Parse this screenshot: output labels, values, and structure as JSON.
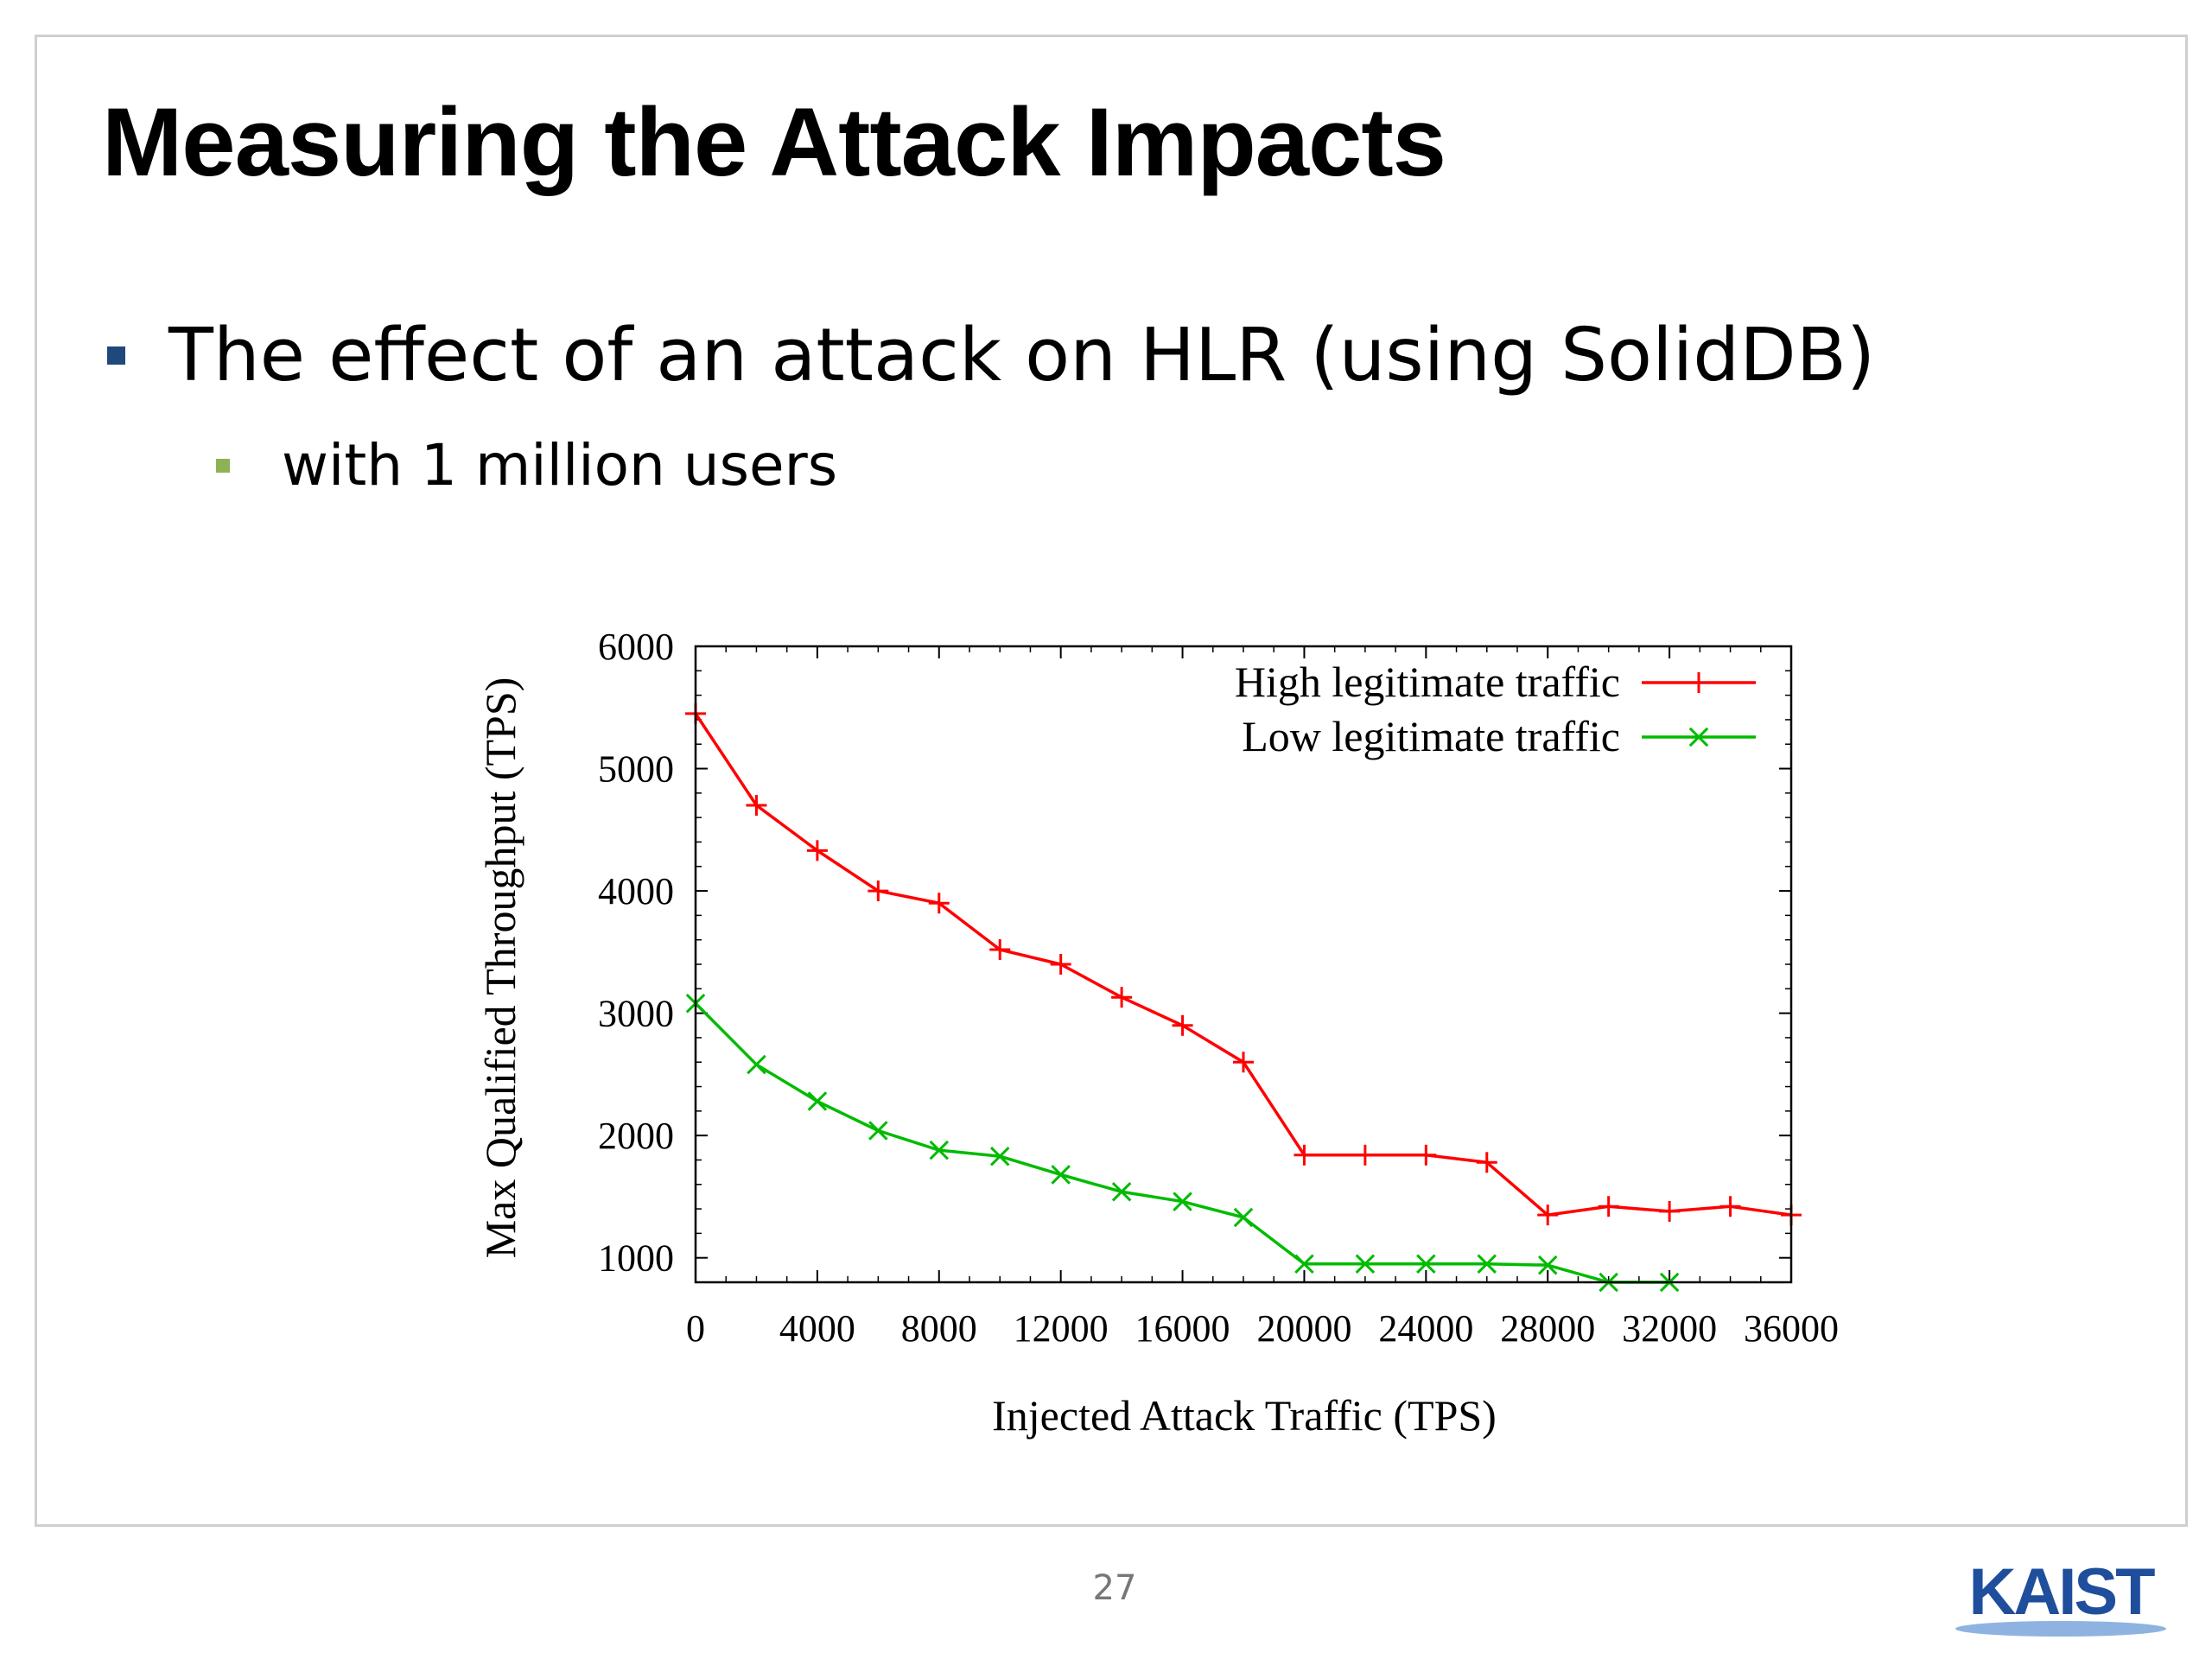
{
  "slide": {
    "title": "Measuring the Attack Impacts",
    "bullets": [
      {
        "text": "The effect of an attack on HLR (using SolidDB)",
        "level": 1
      },
      {
        "text": "with 1 million users",
        "level": 2
      }
    ],
    "page_number": "27",
    "logo": {
      "text": "KAIST",
      "color": "#1f4e9c"
    },
    "colors": {
      "bullet_level1": "#1f497d",
      "bullet_level2": "#8db253"
    }
  },
  "chart_data": {
    "type": "line",
    "title": "",
    "xlabel": "Injected Attack Traffic (TPS)",
    "ylabel": "Max Qualified Throughput (TPS)",
    "xlim": [
      0,
      36000
    ],
    "ylim": [
      800,
      6000
    ],
    "xticks": [
      0,
      4000,
      8000,
      12000,
      16000,
      20000,
      24000,
      28000,
      32000,
      36000
    ],
    "yticks": [
      1000,
      2000,
      3000,
      4000,
      5000,
      6000
    ],
    "grid": false,
    "legend_position": "top-right",
    "series": [
      {
        "name": "High legitimate traffic",
        "color": "#ff0000",
        "marker": "plus",
        "x": [
          0,
          2000,
          4000,
          6000,
          8000,
          10000,
          12000,
          14000,
          16000,
          18000,
          20000,
          22000,
          24000,
          26000,
          28000,
          30000,
          32000,
          34000,
          36000
        ],
        "y": [
          5450,
          4700,
          4330,
          4000,
          3900,
          3520,
          3400,
          3130,
          2900,
          2600,
          1840,
          1840,
          1840,
          1780,
          1350,
          1420,
          1380,
          1420,
          1350
        ]
      },
      {
        "name": "Low legitimate traffic",
        "color": "#00bb00",
        "marker": "x",
        "x": [
          0,
          2000,
          4000,
          6000,
          8000,
          10000,
          12000,
          14000,
          16000,
          18000,
          20000,
          22000,
          24000,
          26000,
          28000,
          30000,
          32000
        ],
        "y": [
          3080,
          2580,
          2280,
          2040,
          1880,
          1830,
          1680,
          1540,
          1460,
          1330,
          950,
          950,
          950,
          950,
          940,
          800,
          800
        ]
      }
    ]
  }
}
